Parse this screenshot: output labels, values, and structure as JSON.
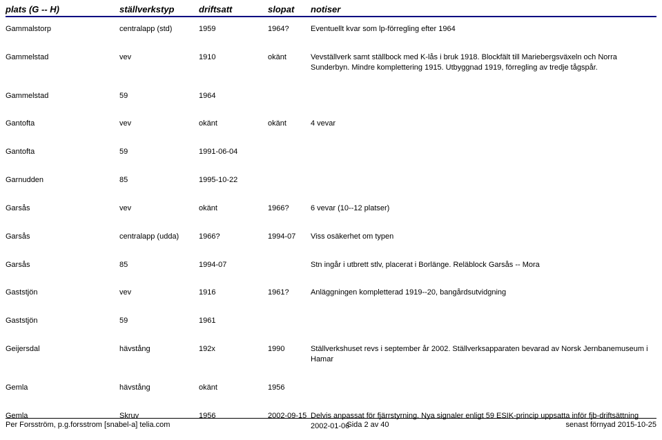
{
  "columns": {
    "plats": "plats (G -- H)",
    "typ": "ställverkstyp",
    "drift": "driftsatt",
    "slop": "slopat",
    "not": "notiser"
  },
  "rows": [
    {
      "plats": "Gammalstorp",
      "typ": "centralapp (std)",
      "drift": "1959",
      "slop": "1964?",
      "not": "Eventuellt kvar som lp-förregling efter 1964"
    },
    {
      "plats": "Gammelstad",
      "typ": "vev",
      "drift": "1910",
      "slop": "okänt",
      "not": "Vevställverk samt ställbock med K-lås i bruk 1918. Blockfält till Mariebergsväxeln och Norra Sunderbyn. Mindre komplettering 1915. Utbyggnad 1919, förregling av tredje tågspår."
    },
    {
      "plats": "Gammelstad",
      "typ": "59",
      "drift": "1964",
      "slop": "",
      "not": ""
    },
    {
      "plats": "Gantofta",
      "typ": "vev",
      "drift": "okänt",
      "slop": "okänt",
      "not": "4 vevar"
    },
    {
      "plats": "Gantofta",
      "typ": "59",
      "drift": "1991-06-04",
      "slop": "",
      "not": ""
    },
    {
      "plats": "Garnudden",
      "typ": "85",
      "drift": "1995-10-22",
      "slop": "",
      "not": ""
    },
    {
      "plats": "Garsås",
      "typ": "vev",
      "drift": "okänt",
      "slop": "1966?",
      "not": "6 vevar (10--12 platser)"
    },
    {
      "plats": "Garsås",
      "typ": "centralapp (udda)",
      "drift": "1966?",
      "slop": "1994-07",
      "not": "Viss osäkerhet om typen"
    },
    {
      "plats": "Garsås",
      "typ": "85",
      "drift": "1994-07",
      "slop": "",
      "not": "Stn ingår i utbrett stlv, placerat i Borlänge. Reläblock Garsås -- Mora"
    },
    {
      "plats": "Gaststjön",
      "typ": "vev",
      "drift": "1916",
      "slop": "1961?",
      "not": "Anläggningen kompletterad 1919--20, bangårdsutvidgning"
    },
    {
      "plats": "Gaststjön",
      "typ": "59",
      "drift": "1961",
      "slop": "",
      "not": ""
    },
    {
      "plats": "Geijersdal",
      "typ": "hävstång",
      "drift": "192x",
      "slop": "1990",
      "not": "Ställverkshuset revs i september år 2002. Ställverksapparaten bevarad av Norsk Jernbanemuseum i Hamar"
    },
    {
      "plats": "Gemla",
      "typ": "hävstång",
      "drift": "okänt",
      "slop": "1956",
      "not": ""
    },
    {
      "plats": "Gemla",
      "typ": "Skruv",
      "drift": "1956",
      "slop": "2002-09-15",
      "not": "Delvis anpassat för fjärrstyrning. Nya signaler enligt 59 ESIK-princip uppsatta inför fjb-driftsättning 2002-01-06"
    }
  ],
  "footer": {
    "left": "Per Forsström, p.g.forsstrom [snabel-a] telia.com",
    "center": "Sida 2 av 40",
    "right": "senast förnyad 2015-10-25"
  }
}
